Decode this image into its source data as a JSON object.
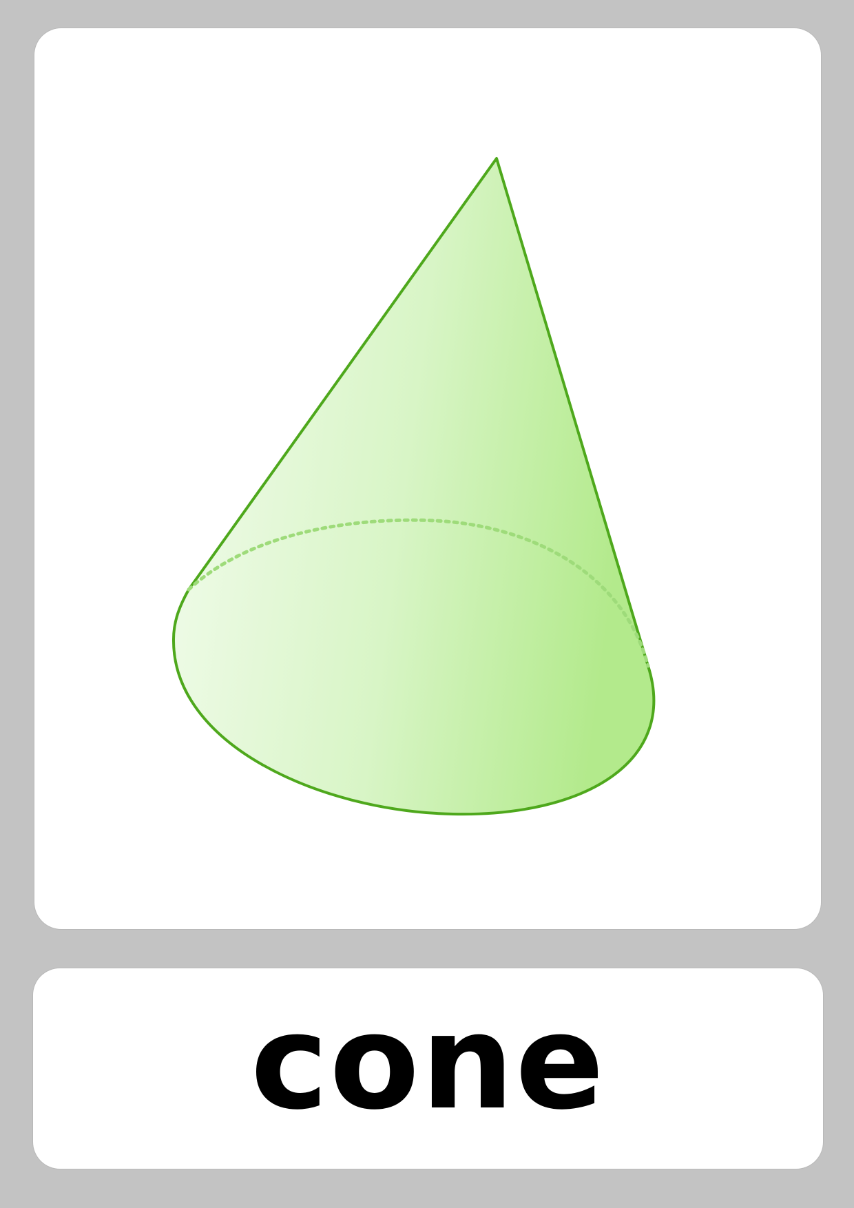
{
  "flashcard": {
    "word": "cone",
    "illustration": {
      "shape": "cone-illustration",
      "stroke_color": "#4ea81c",
      "fill_light": "#f3fcee",
      "fill_dark": "#b3ea8c",
      "hidden_edge_color": "#9edb7a"
    },
    "background_color": "#c3c3c3",
    "card_color": "#ffffff"
  }
}
